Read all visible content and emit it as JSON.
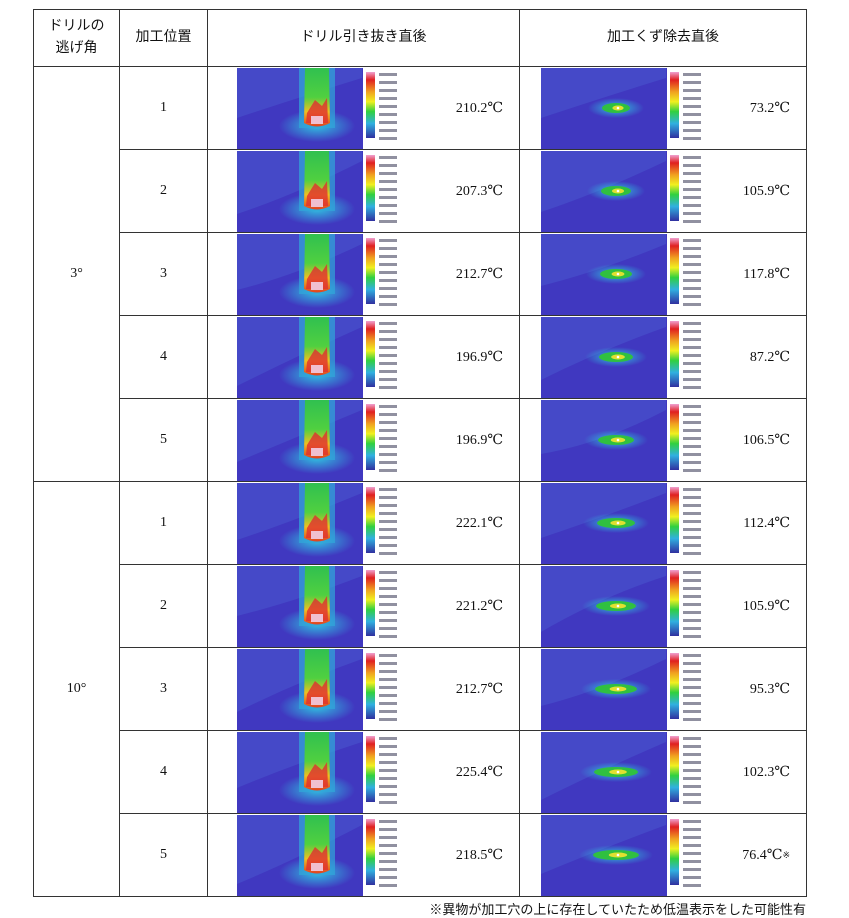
{
  "table": {
    "header": {
      "angle": [
        "ドリルの",
        "逃げ角"
      ],
      "position": "加工位置",
      "drill": "ドリル引き抜き直後",
      "chip": "加工くず除去直後"
    },
    "groups": [
      {
        "angle": "3°",
        "rows": [
          {
            "position": "1",
            "drill": "210.2℃",
            "chip": "73.2℃"
          },
          {
            "position": "2",
            "drill": "207.3℃",
            "chip": "105.9℃"
          },
          {
            "position": "3",
            "drill": "212.7℃",
            "chip": "117.8℃"
          },
          {
            "position": "4",
            "drill": "196.9℃",
            "chip": "87.2℃"
          },
          {
            "position": "5",
            "drill": "196.9℃",
            "chip": "106.5℃"
          }
        ]
      },
      {
        "angle": "10°",
        "rows": [
          {
            "position": "1",
            "drill": "222.1℃",
            "chip": "112.4℃"
          },
          {
            "position": "2",
            "drill": "221.2℃",
            "chip": "105.9℃"
          },
          {
            "position": "3",
            "drill": "212.7℃",
            "chip": "95.3℃"
          },
          {
            "position": "4",
            "drill": "225.4℃",
            "chip": "102.3℃"
          },
          {
            "position": "5",
            "drill": "218.5℃",
            "chip": "76.4℃",
            "chip_mark": "※"
          }
        ]
      }
    ],
    "note": "※異物が加工穴の上に存在していたため低温表示をした可能性有"
  }
}
